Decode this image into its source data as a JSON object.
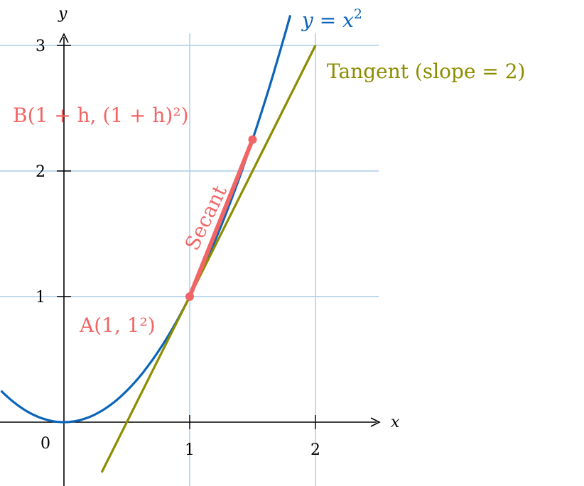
{
  "chart_data": {
    "type": "line",
    "xlabel": "x",
    "ylabel": "y",
    "xlim": [
      -0.5,
      2.5
    ],
    "ylim": [
      -0.5,
      3.2
    ],
    "grid": true,
    "x_ticks": [
      "1",
      "2"
    ],
    "y_ticks": [
      "1",
      "2",
      "3"
    ],
    "origin_label": "0",
    "series": [
      {
        "name": "y = x²",
        "label_main": "y = x",
        "label_sup": "2",
        "function": "x^2",
        "domain": [
          -0.5,
          1.8
        ],
        "color": "#0a64b8"
      },
      {
        "name": "Tangent (slope = 2)",
        "function": "2x-1",
        "domain": [
          0.3,
          2
        ],
        "color": "#8c8c00"
      },
      {
        "name": "Secant",
        "points": [
          [
            1,
            1
          ],
          [
            1.5,
            2.25
          ]
        ],
        "color": "#f26565"
      }
    ],
    "points": [
      {
        "label": "A(1, 1²)",
        "x": 1,
        "y": 1
      },
      {
        "label": "B(1 + h, (1 + h)²)",
        "x": 1.5,
        "y": 2.25
      }
    ],
    "grid_color": "#a9cbe8"
  }
}
